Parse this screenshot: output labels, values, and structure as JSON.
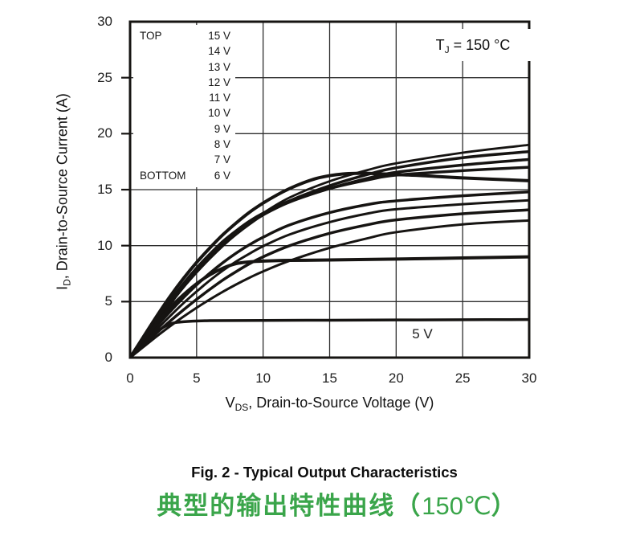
{
  "figure": {
    "fig_caption": "Fig. 2 - Typical Output Characteristics",
    "cn_caption_main": "典型的输出特性曲线",
    "cn_paren_open": "（",
    "cn_temp": "150℃",
    "cn_paren_close": "）",
    "cn_caption_color": "#3aa54a"
  },
  "chart_data": {
    "type": "line",
    "annotation": {
      "prefix": "T",
      "sub": "J",
      "rest": " = 150 °C"
    },
    "xlabel": {
      "prefix": "V",
      "sub": "DS",
      "rest": ", Drain-to-Source Voltage (V)"
    },
    "ylabel": {
      "prefix": "I",
      "sub": "D",
      "rest": ", Drain-to-Source Current (A)"
    },
    "xlim": [
      0,
      30
    ],
    "ylim": [
      0,
      30
    ],
    "x_ticks": [
      0,
      5,
      10,
      15,
      20,
      25,
      30
    ],
    "y_ticks": [
      0,
      5,
      10,
      15,
      20,
      25,
      30
    ],
    "grid": true,
    "curve_color": "#161412",
    "legend": {
      "position": "upper-left",
      "top_label": "TOP",
      "bottom_label": "BOTTOM",
      "entries": [
        "15 V",
        "14 V",
        "13 V",
        "12 V",
        "11 V",
        "10 V",
        "9 V",
        "8 V",
        "7 V",
        "6 V"
      ]
    },
    "inline_label": {
      "text": "5 V",
      "x": 21.5,
      "y": 1.9
    },
    "series": [
      {
        "name": "VGS = 15 V",
        "vgs": 15,
        "width": 2.8,
        "points": [
          [
            0,
            0
          ],
          [
            1,
            1.6
          ],
          [
            2,
            3.18
          ],
          [
            3,
            4.75
          ],
          [
            4,
            6.25
          ],
          [
            5,
            7.6
          ],
          [
            6,
            8.85
          ],
          [
            7,
            10.0
          ],
          [
            8,
            11.05
          ],
          [
            9,
            12.0
          ],
          [
            10,
            12.9
          ],
          [
            12,
            14.3
          ],
          [
            15,
            15.75
          ],
          [
            18,
            16.8
          ],
          [
            20,
            17.35
          ],
          [
            25,
            18.3
          ],
          [
            30,
            19.0
          ]
        ]
      },
      {
        "name": "VGS = 14 V",
        "vgs": 14,
        "width": 3.5,
        "points": [
          [
            0,
            0
          ],
          [
            1,
            1.62
          ],
          [
            2,
            3.22
          ],
          [
            3,
            4.8
          ],
          [
            4,
            6.3
          ],
          [
            5,
            7.65
          ],
          [
            6,
            8.9
          ],
          [
            7,
            10.05
          ],
          [
            8,
            11.05
          ],
          [
            9,
            11.95
          ],
          [
            10,
            12.75
          ],
          [
            12,
            14.0
          ],
          [
            15,
            15.35
          ],
          [
            18,
            16.4
          ],
          [
            20,
            16.95
          ],
          [
            25,
            17.85
          ],
          [
            30,
            18.4
          ]
        ]
      },
      {
        "name": "VGS = 13 V",
        "vgs": 13,
        "width": 3.5,
        "points": [
          [
            0,
            0
          ],
          [
            1,
            1.65
          ],
          [
            2,
            3.3
          ],
          [
            3,
            4.9
          ],
          [
            4,
            6.4
          ],
          [
            5,
            7.8
          ],
          [
            6,
            9.05
          ],
          [
            7,
            10.2
          ],
          [
            8,
            11.15
          ],
          [
            9,
            12.0
          ],
          [
            10,
            12.75
          ],
          [
            12,
            13.9
          ],
          [
            15,
            15.1
          ],
          [
            18,
            16.05
          ],
          [
            20,
            16.55
          ],
          [
            25,
            17.2
          ],
          [
            30,
            17.7
          ]
        ]
      },
      {
        "name": "VGS = 12 V",
        "vgs": 12,
        "width": 3.5,
        "points": [
          [
            0,
            0
          ],
          [
            1,
            1.7
          ],
          [
            2,
            3.4
          ],
          [
            3,
            5.05
          ],
          [
            4,
            6.6
          ],
          [
            5,
            8.0
          ],
          [
            6,
            9.25
          ],
          [
            7,
            10.4
          ],
          [
            8,
            11.35
          ],
          [
            9,
            12.2
          ],
          [
            10,
            12.9
          ],
          [
            12,
            14.0
          ],
          [
            15,
            15.1
          ],
          [
            18,
            15.9
          ],
          [
            20,
            16.3
          ],
          [
            25,
            16.7
          ],
          [
            30,
            17.0
          ]
        ]
      },
      {
        "name": "VGS = 11 V",
        "vgs": 11,
        "width": 4,
        "points": [
          [
            0,
            0
          ],
          [
            1,
            1.85
          ],
          [
            2,
            3.7
          ],
          [
            3,
            5.45
          ],
          [
            4,
            7.05
          ],
          [
            5,
            8.5
          ],
          [
            6,
            9.8
          ],
          [
            7,
            11.0
          ],
          [
            8,
            12.05
          ],
          [
            9,
            13.0
          ],
          [
            10,
            13.8
          ],
          [
            11,
            14.5
          ],
          [
            12,
            15.1
          ],
          [
            13,
            15.6
          ],
          [
            14,
            16.0
          ],
          [
            15,
            16.25
          ],
          [
            16,
            16.4
          ],
          [
            17,
            16.45
          ],
          [
            18,
            16.45
          ],
          [
            20,
            16.35
          ],
          [
            22,
            16.25
          ],
          [
            25,
            16.05
          ],
          [
            30,
            15.8
          ]
        ]
      },
      {
        "name": "VGS = 10 V",
        "vgs": 10,
        "width": 3.5,
        "points": [
          [
            0,
            0
          ],
          [
            1,
            1.4
          ],
          [
            2,
            2.8
          ],
          [
            3,
            4.1
          ],
          [
            4,
            5.35
          ],
          [
            5,
            6.5
          ],
          [
            6,
            7.55
          ],
          [
            7,
            8.5
          ],
          [
            8,
            9.35
          ],
          [
            9,
            10.1
          ],
          [
            10,
            10.75
          ],
          [
            12,
            11.85
          ],
          [
            15,
            12.95
          ],
          [
            18,
            13.7
          ],
          [
            20,
            14.0
          ],
          [
            25,
            14.45
          ],
          [
            30,
            14.8
          ]
        ]
      },
      {
        "name": "VGS = 9 V",
        "vgs": 9,
        "width": 3,
        "points": [
          [
            0,
            0
          ],
          [
            1,
            1.25
          ],
          [
            2,
            2.5
          ],
          [
            3,
            3.7
          ],
          [
            4,
            4.85
          ],
          [
            5,
            5.9
          ],
          [
            6,
            6.9
          ],
          [
            7,
            7.8
          ],
          [
            8,
            8.6
          ],
          [
            9,
            9.3
          ],
          [
            10,
            9.95
          ],
          [
            12,
            11.0
          ],
          [
            15,
            12.1
          ],
          [
            18,
            12.9
          ],
          [
            20,
            13.25
          ],
          [
            25,
            13.7
          ],
          [
            30,
            14.05
          ]
        ]
      },
      {
        "name": "VGS = 8 V",
        "vgs": 8,
        "width": 3.5,
        "points": [
          [
            0,
            0
          ],
          [
            1,
            1.1
          ],
          [
            2,
            2.2
          ],
          [
            3,
            3.25
          ],
          [
            4,
            4.25
          ],
          [
            5,
            5.2
          ],
          [
            6,
            6.1
          ],
          [
            7,
            6.95
          ],
          [
            8,
            7.7
          ],
          [
            9,
            8.4
          ],
          [
            10,
            9.0
          ],
          [
            12,
            10.0
          ],
          [
            15,
            11.1
          ],
          [
            18,
            11.9
          ],
          [
            20,
            12.3
          ],
          [
            25,
            12.85
          ],
          [
            30,
            13.2
          ]
        ]
      },
      {
        "name": "VGS = 7 V",
        "vgs": 7,
        "width": 3,
        "points": [
          [
            0,
            0
          ],
          [
            1,
            0.95
          ],
          [
            2,
            1.9
          ],
          [
            3,
            2.8
          ],
          [
            4,
            3.65
          ],
          [
            5,
            4.45
          ],
          [
            6,
            5.2
          ],
          [
            7,
            5.9
          ],
          [
            8,
            6.55
          ],
          [
            9,
            7.15
          ],
          [
            10,
            7.7
          ],
          [
            12,
            8.65
          ],
          [
            15,
            9.8
          ],
          [
            18,
            10.7
          ],
          [
            20,
            11.2
          ],
          [
            25,
            11.9
          ],
          [
            30,
            12.25
          ]
        ]
      },
      {
        "name": "VGS = 6 V",
        "vgs": 6,
        "width": 4,
        "points": [
          [
            0,
            0
          ],
          [
            1,
            1.55
          ],
          [
            2,
            3.05
          ],
          [
            3,
            4.45
          ],
          [
            4,
            5.6
          ],
          [
            5,
            6.6
          ],
          [
            6,
            7.4
          ],
          [
            7,
            8.0
          ],
          [
            8,
            8.4
          ],
          [
            9,
            8.55
          ],
          [
            10,
            8.62
          ],
          [
            12,
            8.68
          ],
          [
            15,
            8.72
          ],
          [
            20,
            8.8
          ],
          [
            25,
            8.9
          ],
          [
            30,
            9.0
          ]
        ]
      },
      {
        "name": "VGS = 5 V",
        "vgs": 5,
        "width": 3.5,
        "points": [
          [
            0,
            0
          ],
          [
            1,
            1.25
          ],
          [
            2,
            2.3
          ],
          [
            3,
            3.0
          ],
          [
            4,
            3.2
          ],
          [
            6,
            3.3
          ],
          [
            10,
            3.32
          ],
          [
            15,
            3.34
          ],
          [
            20,
            3.36
          ],
          [
            25,
            3.38
          ],
          [
            30,
            3.4
          ]
        ]
      }
    ]
  }
}
